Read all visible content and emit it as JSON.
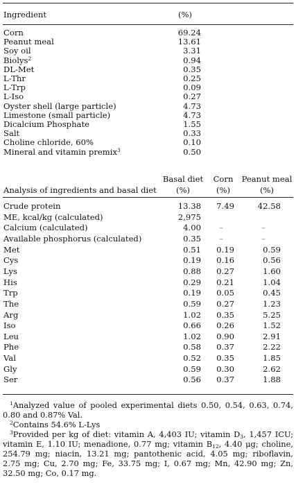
{
  "table1": {
    "header": {
      "ingredient": "Ingredient",
      "pct": "(%)"
    },
    "rows": [
      {
        "name": "Corn",
        "sup": "",
        "value": "69.24"
      },
      {
        "name": "Peanut meal",
        "sup": "",
        "value": "13.61"
      },
      {
        "name": "Soy oil",
        "sup": "",
        "value": "3.31"
      },
      {
        "name": "Biolys",
        "sup": "2",
        "value": "0.94"
      },
      {
        "name": "DL-Met",
        "sup": "",
        "value": "0.35"
      },
      {
        "name": "L-Thr",
        "sup": "",
        "value": "0.25"
      },
      {
        "name": "L-Trp",
        "sup": "",
        "value": "0.09"
      },
      {
        "name": "L-Iso",
        "sup": "",
        "value": "0.27"
      },
      {
        "name": "Oyster shell (large particle)",
        "sup": "",
        "value": "4.73"
      },
      {
        "name": "Limestone (small particle)",
        "sup": "",
        "value": "4.73"
      },
      {
        "name": "Dicalcium Phosphate",
        "sup": "",
        "value": "1.55"
      },
      {
        "name": "Salt",
        "sup": "",
        "value": "0.33"
      },
      {
        "name": "Choline chloride, 60%",
        "sup": "",
        "value": "0.10"
      },
      {
        "name": "Mineral and vitamin premix",
        "sup": "3",
        "value": "0.50"
      }
    ]
  },
  "table2": {
    "header": {
      "analysis": "Analysis of ingredients and basal diet",
      "basal": "Basal diet",
      "corn": "Corn",
      "peanut": "Peanut meal",
      "unit": "(%)"
    },
    "rows": [
      {
        "name": "Crude protein",
        "basal": "13.38",
        "corn": "7.49",
        "peanut": "42.58"
      },
      {
        "name": "ME, kcal/kg (calculated)",
        "basal": "2,975",
        "corn": "",
        "peanut": ""
      },
      {
        "name": "Calcium (calculated)",
        "basal": "4.00",
        "corn": "–",
        "peanut": "–"
      },
      {
        "name": "Available phosphorus (calculated)",
        "basal": "0.35",
        "corn": "–",
        "peanut": "–"
      },
      {
        "name": "Met",
        "basal": "0.51",
        "corn": "0.19",
        "peanut": "0.59"
      },
      {
        "name": "Cys",
        "basal": "0.19",
        "corn": "0.16",
        "peanut": "0.56"
      },
      {
        "name": "Lys",
        "basal": "0.88",
        "corn": "0.27",
        "peanut": "1.60"
      },
      {
        "name": "His",
        "basal": "0.29",
        "corn": "0.21",
        "peanut": "1.04"
      },
      {
        "name": "Trp",
        "basal": "0.19",
        "corn": "0.05",
        "peanut": "0.45"
      },
      {
        "name": "The",
        "basal": "0.59",
        "corn": "0.27",
        "peanut": "1.23"
      },
      {
        "name": "Arg",
        "basal": "1.02",
        "corn": "0.35",
        "peanut": "5.25"
      },
      {
        "name": "Iso",
        "basal": "0.66",
        "corn": "0.26",
        "peanut": "1.52"
      },
      {
        "name": "Leu",
        "basal": "1.02",
        "corn": "0.90",
        "peanut": "2.91"
      },
      {
        "name": "Phe",
        "basal": "0.58",
        "corn": "0.37",
        "peanut": "2.22"
      },
      {
        "name": "Val",
        "basal": "0.52",
        "corn": "0.35",
        "peanut": "1.85"
      },
      {
        "name": "Gly",
        "basal": "0.59",
        "corn": "0.30",
        "peanut": "2.62"
      },
      {
        "name": "Ser",
        "basal": "0.56",
        "corn": "0.37",
        "peanut": "1.88"
      }
    ]
  },
  "footnotes": {
    "fn1": {
      "mark": "1",
      "text": "Analyzed value of pooled experimental diets 0.50, 0.54, 0.63, 0.74, 0.80 and 0.87% Val."
    },
    "fn2": {
      "mark": "2",
      "text": "Contains 54.6% L-Lys"
    },
    "fn3": {
      "mark": "3",
      "part1": "Provided per kg of diet: vitamin A, 4,403 IU; vitamin D",
      "sub_d": "3",
      "part2": ", 1,457 ICU; vitamin E, 1.10 IU; menadione, 0.77 mg; vitamin B",
      "sub_b": "12",
      "part3": ", 4.40 μg; choline, 254.79 mg; niacin, 13.21 mg; pantothenic acid, 4.05 mg; riboflavin, 2.75 mg; Cu, 2.70 mg; Fe, 33.75 mg; I, 0.67 mg; Mn, 42.90 mg; Zn, 32.50 mg; Co, 0.17 mg."
    }
  }
}
